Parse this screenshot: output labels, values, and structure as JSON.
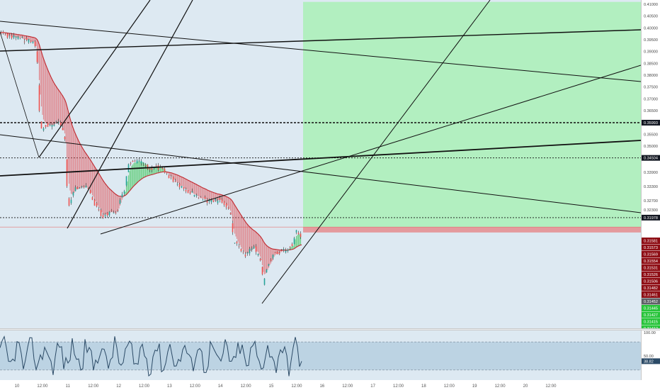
{
  "price_axis": {
    "ticks": [
      {
        "label": "0.41000",
        "value": 0.41
      },
      {
        "label": "0.40500",
        "value": 0.405
      },
      {
        "label": "0.40000",
        "value": 0.4
      },
      {
        "label": "0.39500",
        "value": 0.395
      },
      {
        "label": "0.39000",
        "value": 0.39
      },
      {
        "label": "0.38500",
        "value": 0.385
      },
      {
        "label": "0.38000",
        "value": 0.38
      },
      {
        "label": "0.37500",
        "value": 0.375
      },
      {
        "label": "0.37000",
        "value": 0.37
      },
      {
        "label": "0.36500",
        "value": 0.365
      },
      {
        "label": "0.35500",
        "value": 0.355
      },
      {
        "label": "0.35000",
        "value": 0.35
      },
      {
        "label": "0.33900",
        "value": 0.339
      },
      {
        "label": "0.33300",
        "value": 0.333
      },
      {
        "label": "0.32700",
        "value": 0.327
      },
      {
        "label": "0.32300",
        "value": 0.323
      }
    ],
    "dark_badges": [
      {
        "label": "0.35993",
        "value": 0.35993
      },
      {
        "label": "0.34504",
        "value": 0.34504
      },
      {
        "label": "0.31978",
        "value": 0.31978
      }
    ],
    "red_stack": [
      "0.31581",
      "0.31573",
      "0.31569",
      "0.31554",
      "0.31531",
      "0.31526",
      "0.31506",
      "0.31482",
      "0.31461"
    ],
    "gray_badge": "0.31452",
    "green_stack": [
      "0.31445",
      "0.31427",
      "0.31415",
      "0.31412"
    ]
  },
  "osc_axis": {
    "top_label": "100.00",
    "mid_label": "50.00",
    "current_badge": "38.82",
    "current_value": 38.82
  },
  "time_axis": [
    "10",
    "12:00",
    "11",
    "12:00",
    "12",
    "12:00",
    "13",
    "12:00",
    "14",
    "12:00",
    "15",
    "12:00",
    "16",
    "12:00",
    "17",
    "12:00",
    "18",
    "12:00",
    "19",
    "12:00",
    "20",
    "12:00"
  ],
  "colors": {
    "pane_bg": "#dde9f2",
    "long_target": "#b2efc0",
    "long_stop": "#e49a9d",
    "ribbon_bear": "#e0484e",
    "ribbon_bull": "#1fbf3a",
    "badge_dark": "#131722",
    "badge_red": "#8e0d14",
    "badge_green": "#27c43a",
    "osc_line": "#2b4a66",
    "osc_band": "#bcd3e3"
  },
  "position": {
    "entry": 0.31581,
    "stop": 0.3135,
    "target": 0.411
  },
  "horizontal_levels": [
    0.35993,
    0.34504,
    0.31978
  ]
}
